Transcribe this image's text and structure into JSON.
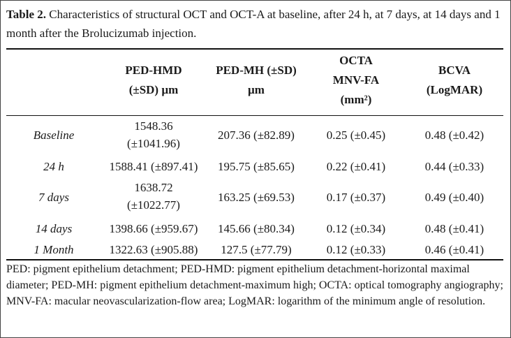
{
  "caption": {
    "label": "Table 2.",
    "text": " Characteristics of structural OCT and OCT-A at baseline, after 24 h, at 7 days, at 14 days and 1 month after the Brolucizumab injection."
  },
  "table": {
    "headers": [
      [
        "PED-HMD",
        "(±SD) µm"
      ],
      [
        "PED-MH (±SD)",
        "µm"
      ],
      [
        "OCTA",
        "MNV-FA",
        "(mm²)"
      ],
      [
        "BCVA",
        "(LogMAR)"
      ]
    ],
    "rows": [
      {
        "label": "Baseline",
        "cells": [
          [
            "1548.36",
            "(±1041.96)"
          ],
          [
            "207.36 (±82.89)"
          ],
          [
            "0.25 (±0.45)"
          ],
          [
            "0.48 (±0.42)"
          ]
        ]
      },
      {
        "label": "24 h",
        "cells": [
          [
            "1588.41 (±897.41)"
          ],
          [
            "195.75 (±85.65)"
          ],
          [
            "0.22 (±0.41)"
          ],
          [
            "0.44 (±0.33)"
          ]
        ]
      },
      {
        "label": "7 days",
        "cells": [
          [
            "1638.72",
            "(±1022.77)"
          ],
          [
            "163.25 (±69.53)"
          ],
          [
            "0.17 (±0.37)"
          ],
          [
            "0.49 (±0.40)"
          ]
        ]
      },
      {
        "label": "14 days",
        "cells": [
          [
            "1398.66 (±959.67)"
          ],
          [
            "145.66 (±80.34)"
          ],
          [
            "0.12 (±0.34)"
          ],
          [
            "0.48 (±0.41)"
          ]
        ]
      },
      {
        "label": "1 Month",
        "cells": [
          [
            "1322.63 (±905.88)"
          ],
          [
            "127.5 (±77.79)"
          ],
          [
            "0.12 (±0.33)"
          ],
          [
            "0.46 (±0.41)"
          ]
        ]
      }
    ]
  },
  "footnote": "PED: pigment epithelium detachment; PED-HMD: pigment epithelium detachment-horizontal maximal diameter; PED-MH: pigment epithelium detachment-maximum high; OCTA: optical tomography angiography; MNV-FA: macular neovascularization-flow area; LogMAR: logarithm of the minimum angle of resolution."
}
